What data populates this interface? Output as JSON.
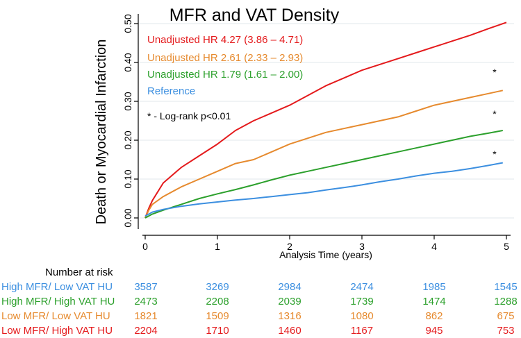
{
  "chart_data": {
    "type": "line",
    "title": "MFR and VAT Density",
    "xlabel": "Analysis Time (years)",
    "ylabel": "Death or Myocardial Infarction",
    "xlim": [
      0,
      5
    ],
    "ylim": [
      0,
      0.5
    ],
    "xticks": [
      "0",
      "1",
      "2",
      "3",
      "4",
      "5"
    ],
    "yticks": [
      "0.00",
      "0.10",
      "0.20",
      "0.30",
      "0.40",
      "0.50"
    ],
    "grid": true,
    "series": [
      {
        "name": "Low MFR/ High VAT HU",
        "color": "#e41a1c",
        "x": [
          0,
          0.05,
          0.1,
          0.25,
          0.5,
          0.75,
          1,
          1.25,
          1.5,
          1.75,
          2,
          2.25,
          2.5,
          2.75,
          3,
          3.25,
          3.5,
          3.75,
          4,
          4.25,
          4.5,
          4.75,
          5
        ],
        "y": [
          0,
          0.025,
          0.045,
          0.09,
          0.13,
          0.16,
          0.19,
          0.225,
          0.25,
          0.27,
          0.29,
          0.315,
          0.34,
          0.36,
          0.38,
          0.395,
          0.41,
          0.425,
          0.44,
          0.455,
          0.47,
          0.487,
          0.503
        ]
      },
      {
        "name": "Low MFR/ Low VAT HU",
        "color": "#e68a2e",
        "x": [
          0,
          0.05,
          0.1,
          0.25,
          0.5,
          0.75,
          1,
          1.25,
          1.5,
          1.75,
          2,
          2.25,
          2.5,
          2.75,
          3,
          3.25,
          3.5,
          3.75,
          4,
          4.25,
          4.5,
          4.75,
          4.95
        ],
        "y": [
          0,
          0.02,
          0.035,
          0.055,
          0.08,
          0.1,
          0.12,
          0.14,
          0.15,
          0.17,
          0.19,
          0.205,
          0.22,
          0.23,
          0.24,
          0.25,
          0.26,
          0.275,
          0.29,
          0.3,
          0.31,
          0.32,
          0.328
        ]
      },
      {
        "name": "High MFR/ High VAT HU",
        "color": "#2ca02c",
        "x": [
          0,
          0.1,
          0.25,
          0.5,
          0.75,
          1,
          1.25,
          1.5,
          1.75,
          2,
          2.25,
          2.5,
          2.75,
          3,
          3.25,
          3.5,
          3.75,
          4,
          4.25,
          4.5,
          4.75,
          4.95
        ],
        "y": [
          0,
          0.01,
          0.02,
          0.035,
          0.05,
          0.062,
          0.073,
          0.085,
          0.098,
          0.11,
          0.12,
          0.13,
          0.14,
          0.15,
          0.16,
          0.17,
          0.18,
          0.19,
          0.2,
          0.21,
          0.218,
          0.225
        ]
      },
      {
        "name": "High MFR/ Low VAT HU",
        "color": "#3c8fe0",
        "x": [
          0,
          0.1,
          0.25,
          0.5,
          0.75,
          1,
          1.25,
          1.5,
          1.75,
          2,
          2.25,
          2.5,
          2.75,
          3,
          3.25,
          3.5,
          3.75,
          4,
          4.25,
          4.5,
          4.75,
          4.95
        ],
        "y": [
          0.005,
          0.015,
          0.022,
          0.03,
          0.036,
          0.041,
          0.046,
          0.05,
          0.055,
          0.06,
          0.065,
          0.072,
          0.078,
          0.085,
          0.093,
          0.1,
          0.108,
          0.115,
          0.12,
          0.127,
          0.135,
          0.142
        ]
      }
    ],
    "legend": {
      "placement": "top-left",
      "entries": [
        {
          "text": "Unadjusted HR 4.27 (3.86 – 4.71)",
          "color": "#e41a1c"
        },
        {
          "text": "Unadjusted HR 2.61 (2.33 – 2.93)",
          "color": "#e68a2e"
        },
        {
          "text": "Unadjusted HR 1.79 (1.61 – 2.00)",
          "color": "#2ca02c"
        },
        {
          "text": "Reference",
          "color": "#3c8fe0"
        }
      ],
      "note": "* - Log-rank p<0.01"
    },
    "annotations": [
      {
        "text": "*",
        "x": 4.85,
        "y": 0.4
      },
      {
        "text": "*",
        "x": 4.85,
        "y": 0.295
      },
      {
        "text": "*",
        "x": 4.85,
        "y": 0.19
      }
    ],
    "risk_table": {
      "title": "Number at risk",
      "rows": [
        {
          "label": "High MFR/ Low VAT HU",
          "color": "#3c8fe0",
          "values": [
            "3587",
            "3269",
            "2984",
            "2474",
            "1985",
            "1545"
          ]
        },
        {
          "label": "High MFR/ High VAT HU",
          "color": "#2ca02c",
          "values": [
            "2473",
            "2208",
            "2039",
            "1739",
            "1474",
            "1288"
          ]
        },
        {
          "label": "Low MFR/ Low VAT HU",
          "color": "#e68a2e",
          "values": [
            "1821",
            "1509",
            "1316",
            "1080",
            "862",
            "675"
          ]
        },
        {
          "label": "Low MFR/ High VAT HU",
          "color": "#e41a1c",
          "values": [
            "2204",
            "1710",
            "1460",
            "1167",
            "945",
            "753"
          ]
        }
      ]
    }
  }
}
